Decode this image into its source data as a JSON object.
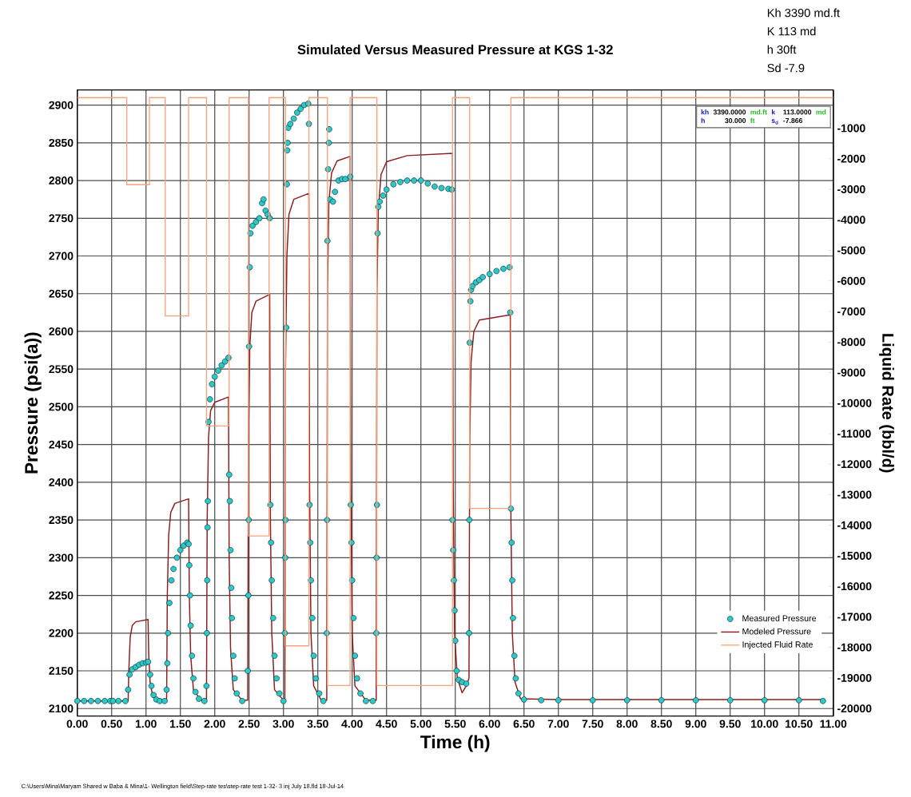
{
  "chart_data": {
    "type": "line",
    "title": "Simulated Versus Measured Pressure at KGS 1-32",
    "xlabel": "Time (h)",
    "ylabel": "Pressure (psi(a))",
    "y2label": "Liquid Rate (bbl/d)",
    "xlim": [
      0,
      11
    ],
    "ylim": [
      2090,
      2920
    ],
    "y2lim": [
      -20250,
      250
    ],
    "xticks": [
      {
        "value": 0,
        "label": "0.00"
      },
      {
        "value": 0.5,
        "label": "0.50"
      },
      {
        "value": 1,
        "label": "1.00"
      },
      {
        "value": 1.5,
        "label": "1.50"
      },
      {
        "value": 2,
        "label": "2.00"
      },
      {
        "value": 2.5,
        "label": "2.50"
      },
      {
        "value": 3,
        "label": "3.00"
      },
      {
        "value": 3.5,
        "label": "3.50"
      },
      {
        "value": 4,
        "label": "4.00"
      },
      {
        "value": 4.5,
        "label": "4.50"
      },
      {
        "value": 5,
        "label": "5.00"
      },
      {
        "value": 5.5,
        "label": "5.50"
      },
      {
        "value": 6,
        "label": "6.00"
      },
      {
        "value": 6.5,
        "label": "6.50"
      },
      {
        "value": 7,
        "label": "7.00"
      },
      {
        "value": 7.5,
        "label": "7.50"
      },
      {
        "value": 8,
        "label": "8.00"
      },
      {
        "value": 8.5,
        "label": "8.50"
      },
      {
        "value": 9,
        "label": "9.00"
      },
      {
        "value": 9.5,
        "label": "9.50"
      },
      {
        "value": 10,
        "label": "10.00"
      },
      {
        "value": 10.5,
        "label": "10.50"
      },
      {
        "value": 11,
        "label": "11.00"
      }
    ],
    "yticks": [
      2100,
      2150,
      2200,
      2250,
      2300,
      2350,
      2400,
      2450,
      2500,
      2550,
      2600,
      2650,
      2700,
      2750,
      2800,
      2850,
      2900
    ],
    "y2ticks": [
      -1000,
      -2000,
      -3000,
      -4000,
      -5000,
      -6000,
      -7000,
      -8000,
      -9000,
      -10000,
      -11000,
      -12000,
      -13000,
      -14000,
      -15000,
      -16000,
      -17000,
      -18000,
      -19000,
      -20000
    ],
    "grid": true,
    "legend": "bottom right",
    "annotations": [
      "Kh 3390 md.ft",
      "K 113 md",
      "h 30ft",
      "Sd -7.9",
      "kh",
      "3390.0000",
      "md.ft",
      "k",
      "113.0000",
      "md",
      "h",
      "30.000",
      "ft",
      "s$_{d}$",
      "-7.866",
      "C:\\Users\\Mina\\Maryam Shared w Baba & Mina\\1- Wellington field\\Step-rate tes\\step-rate test 1-32- 3 inj July 18.fld 18-Jul-14"
    ],
    "series": [
      {
        "name": "Measured Pressure",
        "type": "scatter",
        "marker": "circle",
        "color": "#2ec8c8",
        "x": [
          0,
          0.1,
          0.2,
          0.3,
          0.4,
          0.48,
          0.52,
          0.6,
          0.7,
          0.74,
          0.76,
          0.8,
          0.85,
          0.9,
          0.95,
          1.0,
          1.03,
          1.06,
          1.08,
          1.11,
          1.15,
          1.2,
          1.27,
          1.3,
          1.31,
          1.32,
          1.34,
          1.37,
          1.4,
          1.45,
          1.5,
          1.55,
          1.6,
          1.62,
          1.63,
          1.64,
          1.65,
          1.67,
          1.69,
          1.72,
          1.77,
          1.85,
          1.88,
          1.885,
          1.89,
          1.895,
          1.9,
          1.91,
          1.93,
          1.96,
          2.0,
          2.05,
          2.1,
          2.15,
          2.2,
          2.21,
          2.22,
          2.23,
          2.24,
          2.25,
          2.27,
          2.29,
          2.32,
          2.4,
          2.48,
          2.49,
          2.495,
          2.5,
          2.51,
          2.52,
          2.55,
          2.6,
          2.65,
          2.69,
          2.71,
          2.74,
          2.77,
          2.8,
          2.81,
          2.82,
          2.83,
          2.85,
          2.87,
          2.9,
          2.94,
          3.0,
          3.02,
          3.025,
          3.03,
          3.04,
          3.05,
          3.055,
          3.06,
          3.07,
          3.1,
          3.15,
          3.2,
          3.25,
          3.3,
          3.36,
          3.37,
          3.38,
          3.39,
          3.4,
          3.42,
          3.44,
          3.47,
          3.52,
          3.58,
          3.63,
          3.635,
          3.64,
          3.65,
          3.66,
          3.665,
          3.68,
          3.72,
          3.75,
          3.8,
          3.85,
          3.9,
          3.97,
          3.98,
          3.99,
          4.0,
          4.02,
          4.04,
          4.07,
          4.12,
          4.2,
          4.3,
          4.35,
          4.355,
          4.36,
          4.37,
          4.38,
          4.4,
          4.45,
          4.5,
          4.6,
          4.7,
          4.8,
          4.9,
          5.0,
          5.1,
          5.2,
          5.3,
          5.4,
          5.45,
          5.46,
          5.47,
          5.48,
          5.49,
          5.5,
          5.52,
          5.55,
          5.6,
          5.66,
          5.7,
          5.705,
          5.71,
          5.72,
          5.73,
          5.75,
          5.8,
          5.85,
          5.9,
          6.0,
          6.1,
          6.2,
          6.29,
          6.3,
          6.31,
          6.32,
          6.33,
          6.34,
          6.36,
          6.38,
          6.42,
          6.5,
          6.75,
          7.0,
          7.5,
          8.0,
          8.5,
          9.0,
          9.5,
          10.0,
          10.5,
          10.85
        ],
        "values": [
          2110,
          2110,
          2110,
          2110,
          2110,
          2110,
          2110,
          2110,
          2110,
          2125,
          2145,
          2152,
          2155,
          2158,
          2160,
          2161,
          2162,
          2145,
          2130,
          2118,
          2112,
          2110,
          2110,
          2125,
          2160,
          2200,
          2240,
          2270,
          2285,
          2300,
          2310,
          2316,
          2320,
          2318,
          2290,
          2250,
          2210,
          2170,
          2140,
          2122,
          2113,
          2110,
          2130,
          2200,
          2270,
          2340,
          2375,
          2480,
          2510,
          2530,
          2540,
          2548,
          2555,
          2560,
          2565,
          2410,
          2375,
          2310,
          2260,
          2220,
          2170,
          2140,
          2120,
          2110,
          2150,
          2250,
          2350,
          2580,
          2685,
          2730,
          2740,
          2745,
          2750,
          2770,
          2775,
          2760,
          2755,
          2750,
          2370,
          2320,
          2270,
          2220,
          2170,
          2140,
          2120,
          2110,
          2200,
          2300,
          2350,
          2605,
          2795,
          2840,
          2850,
          2870,
          2875,
          2882,
          2890,
          2895,
          2900,
          2902,
          2875,
          2370,
          2320,
          2270,
          2220,
          2170,
          2140,
          2120,
          2110,
          2200,
          2350,
          2720,
          2815,
          2850,
          2868,
          2775,
          2772,
          2785,
          2800,
          2802,
          2802,
          2805,
          2370,
          2320,
          2270,
          2220,
          2170,
          2140,
          2120,
          2110,
          2110,
          2200,
          2300,
          2370,
          2730,
          2765,
          2772,
          2780,
          2788,
          2795,
          2798,
          2800,
          2800,
          2800,
          2796,
          2792,
          2790,
          2789,
          2788,
          2350,
          2310,
          2270,
          2230,
          2190,
          2150,
          2138,
          2135,
          2133,
          2200,
          2350,
          2585,
          2640,
          2655,
          2660,
          2665,
          2668,
          2672,
          2676,
          2680,
          2683,
          2685,
          2625,
          2365,
          2320,
          2270,
          2220,
          2170,
          2140,
          2120,
          2112,
          2111,
          2111,
          2111,
          2111,
          2111,
          2111,
          2111,
          2111,
          2111,
          2110
        ]
      },
      {
        "name": "Modeled Pressure",
        "color": "#8b1e1e",
        "x": [
          0,
          0.74,
          0.75,
          0.77,
          0.8,
          0.85,
          1.03,
          1.04,
          1.06,
          1.1,
          1.3,
          1.31,
          1.33,
          1.36,
          1.42,
          1.62,
          1.63,
          1.65,
          1.69,
          1.8,
          1.88,
          1.89,
          1.91,
          1.94,
          2.0,
          2.2,
          2.21,
          2.23,
          2.27,
          2.4,
          2.48,
          2.49,
          2.51,
          2.54,
          2.6,
          2.8,
          2.81,
          2.83,
          2.87,
          3.0,
          3.02,
          3.03,
          3.05,
          3.08,
          3.15,
          3.37,
          3.38,
          3.4,
          3.44,
          3.55,
          3.63,
          3.64,
          3.66,
          3.7,
          3.78,
          3.97,
          3.98,
          4.0,
          4.04,
          4.2,
          4.35,
          4.36,
          4.38,
          4.42,
          4.5,
          4.8,
          5.46,
          5.47,
          5.49,
          5.53,
          5.6,
          5.66,
          5.7,
          5.71,
          5.73,
          5.77,
          5.85,
          6.3,
          6.31,
          6.33,
          6.37,
          6.45,
          7.0,
          10.85
        ],
        "values": [
          2110,
          2110,
          2150,
          2195,
          2210,
          2215,
          2218,
          2170,
          2135,
          2115,
          2110,
          2250,
          2330,
          2360,
          2372,
          2378,
          2250,
          2170,
          2125,
          2111,
          2111,
          2350,
          2460,
          2495,
          2506,
          2513,
          2300,
          2180,
          2125,
          2111,
          2111,
          2450,
          2580,
          2625,
          2640,
          2649,
          2350,
          2200,
          2125,
          2111,
          2111,
          2550,
          2700,
          2755,
          2775,
          2783,
          2400,
          2200,
          2130,
          2111,
          2111,
          2650,
          2770,
          2810,
          2826,
          2832,
          2400,
          2200,
          2130,
          2111,
          2111,
          2650,
          2760,
          2808,
          2825,
          2833,
          2836,
          2400,
          2200,
          2140,
          2121,
          2130,
          2140,
          2450,
          2560,
          2600,
          2615,
          2622,
          2350,
          2200,
          2135,
          2113,
          2112,
          2112
        ]
      },
      {
        "name": "Injected Fluid Rate",
        "type": "step",
        "axis": "y2",
        "color": "#f7a27c",
        "x": [
          0,
          0.72,
          1.05,
          1.28,
          1.62,
          1.88,
          2.21,
          2.49,
          2.79,
          3.03,
          3.37,
          3.64,
          3.97,
          4.36,
          5.46,
          5.71,
          6.31,
          11
        ],
        "values": [
          0,
          -2850,
          0,
          -7150,
          0,
          -10750,
          0,
          -14350,
          0,
          -17950,
          0,
          -19250,
          0,
          -19250,
          0,
          -13450,
          0,
          0
        ]
      }
    ]
  }
}
